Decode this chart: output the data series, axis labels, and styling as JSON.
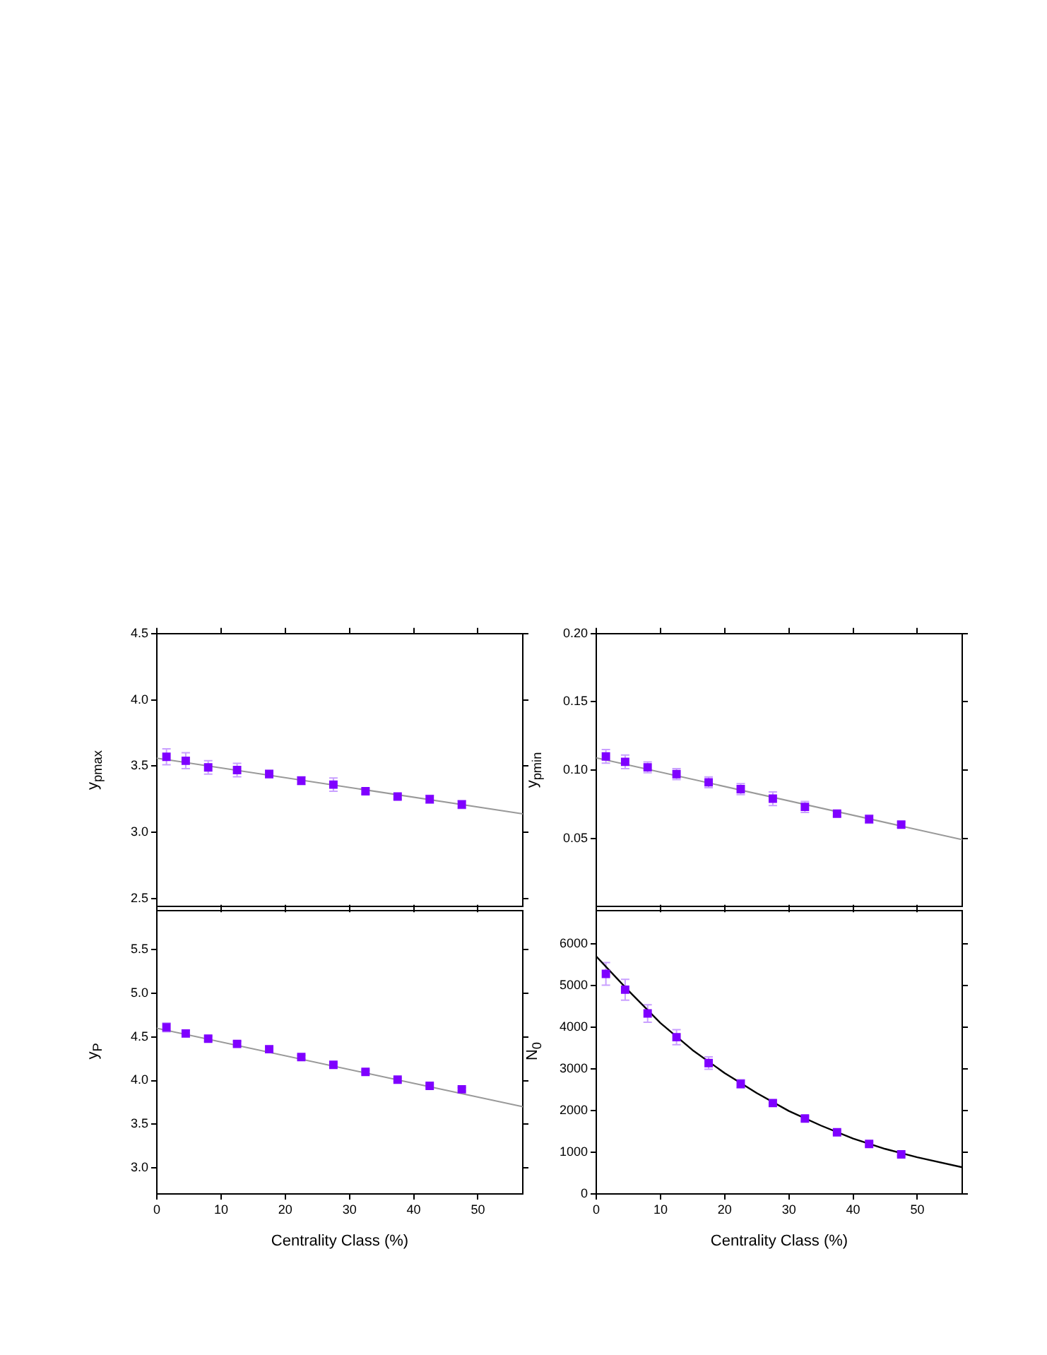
{
  "chart_data": [
    {
      "type": "scatter",
      "ylabel": "y$_{pmax}$",
      "xlim": [
        0,
        57
      ],
      "xticks": [
        0,
        10,
        20,
        30,
        40,
        50
      ],
      "ylim": [
        2.44,
        4.5
      ],
      "yticks": [
        {
          "value": 2.5,
          "label": "2.5"
        },
        {
          "value": 3,
          "label": "3.0"
        },
        {
          "value": 3.5,
          "label": "3.5"
        },
        {
          "value": 4,
          "label": "4.0"
        },
        {
          "value": 4.5,
          "label": "4.5"
        }
      ],
      "tick_labels": "y",
      "grid": false,
      "legend": false,
      "marker": "square",
      "series": [
        {
          "color": "#7f00ff",
          "x": [
            1.5,
            4.5,
            8,
            12.5,
            17.5,
            22.5,
            27.5,
            32.5,
            37.5,
            42.5,
            47.5
          ],
          "values": [
            3.57,
            3.54,
            3.49,
            3.47,
            3.44,
            3.39,
            3.36,
            3.31,
            3.27,
            3.25,
            3.21
          ],
          "errors": [
            0.06,
            0.06,
            0.05,
            0.05,
            0.03,
            0.03,
            0.05,
            0.02,
            0.02,
            0.03,
            0.03
          ]
        },
        {
          "type": "line",
          "color": "#999999",
          "marker": "none",
          "x": [
            0,
            57
          ],
          "values": [
            3.56,
            3.14
          ]
        }
      ]
    },
    {
      "type": "scatter",
      "ylabel": "y$_{pmin}$",
      "xlim": [
        0,
        57
      ],
      "xticks": [
        0,
        10,
        20,
        30,
        40,
        50
      ],
      "ylim": [
        0,
        0.2
      ],
      "yticks": [
        0.05,
        {
          "value": 0.1,
          "label": "0.10"
        },
        0.15,
        {
          "value": 0.2,
          "label": "0.20"
        }
      ],
      "tick_labels": "y",
      "grid": false,
      "legend": false,
      "marker": "square",
      "series": [
        {
          "color": "#7f00ff",
          "x": [
            1.5,
            4.5,
            8,
            12.5,
            17.5,
            22.5,
            27.5,
            32.5,
            37.5,
            42.5,
            47.5
          ],
          "values": [
            0.11,
            0.106,
            0.102,
            0.097,
            0.091,
            0.086,
            0.079,
            0.073,
            0.068,
            0.064,
            0.06
          ],
          "errors": [
            0.005,
            0.005,
            0.004,
            0.004,
            0.004,
            0.004,
            0.005,
            0.004,
            0.002,
            0.003,
            0.002
          ]
        },
        {
          "type": "line",
          "color": "#999999",
          "marker": "none",
          "x": [
            0,
            57
          ],
          "values": [
            0.109,
            0.049
          ]
        }
      ]
    },
    {
      "type": "scatter",
      "xlabel": "Centrality Class (%)",
      "ylabel": "y$_{P}$",
      "xlim": [
        0,
        57
      ],
      "xticks": [
        0,
        10,
        20,
        30,
        40,
        50
      ],
      "ylim": [
        2.7,
        5.95
      ],
      "yticks": [
        {
          "value": 3,
          "label": "3.0"
        },
        {
          "value": 3.5,
          "label": "3.5"
        },
        {
          "value": 4,
          "label": "4.0"
        },
        {
          "value": 4.5,
          "label": "4.5"
        },
        {
          "value": 5,
          "label": "5.0"
        },
        {
          "value": 5.5,
          "label": "5.5"
        }
      ],
      "grid": false,
      "legend": false,
      "marker": "square",
      "series": [
        {
          "color": "#7f00ff",
          "x": [
            1.5,
            4.5,
            8,
            12.5,
            17.5,
            22.5,
            27.5,
            32.5,
            37.5,
            42.5,
            47.5
          ],
          "values": [
            4.61,
            4.54,
            4.48,
            4.42,
            4.36,
            4.27,
            4.18,
            4.1,
            4.01,
            3.94,
            3.9
          ],
          "errors": [
            0.05,
            0.04,
            0.03,
            0.03,
            0.03,
            0.02,
            0.02,
            0.02,
            0.02,
            0.02,
            0.02
          ]
        },
        {
          "type": "line",
          "color": "#999999",
          "marker": "none",
          "x": [
            0,
            57
          ],
          "values": [
            4.6,
            3.7
          ]
        }
      ]
    },
    {
      "type": "scatter",
      "xlabel": "Centrality Class (%)",
      "ylabel": "N$_{0}$",
      "xlim": [
        0,
        57
      ],
      "xticks": [
        0,
        10,
        20,
        30,
        40,
        50
      ],
      "ylim": [
        0,
        6800
      ],
      "yticks": [
        0,
        1000,
        2000,
        3000,
        4000,
        5000,
        6000
      ],
      "grid": false,
      "legend": false,
      "marker": "square",
      "series": [
        {
          "color": "#7f00ff",
          "x": [
            1.5,
            4.5,
            8,
            12.5,
            17.5,
            22.5,
            27.5,
            32.5,
            37.5,
            42.5,
            47.5
          ],
          "values": [
            5280,
            4900,
            4330,
            3760,
            3140,
            2640,
            2180,
            1810,
            1480,
            1200,
            950
          ],
          "errors": [
            270,
            250,
            210,
            180,
            150,
            100,
            70,
            60,
            50,
            50,
            40
          ]
        },
        {
          "type": "line",
          "color": "#000000",
          "marker": "none",
          "x": [
            0,
            5,
            10,
            15,
            20,
            25,
            30,
            35,
            40,
            45,
            50,
            57
          ],
          "values": [
            5700,
            4880,
            4100,
            3450,
            2900,
            2420,
            1990,
            1640,
            1330,
            1080,
            880,
            640
          ]
        }
      ]
    }
  ]
}
